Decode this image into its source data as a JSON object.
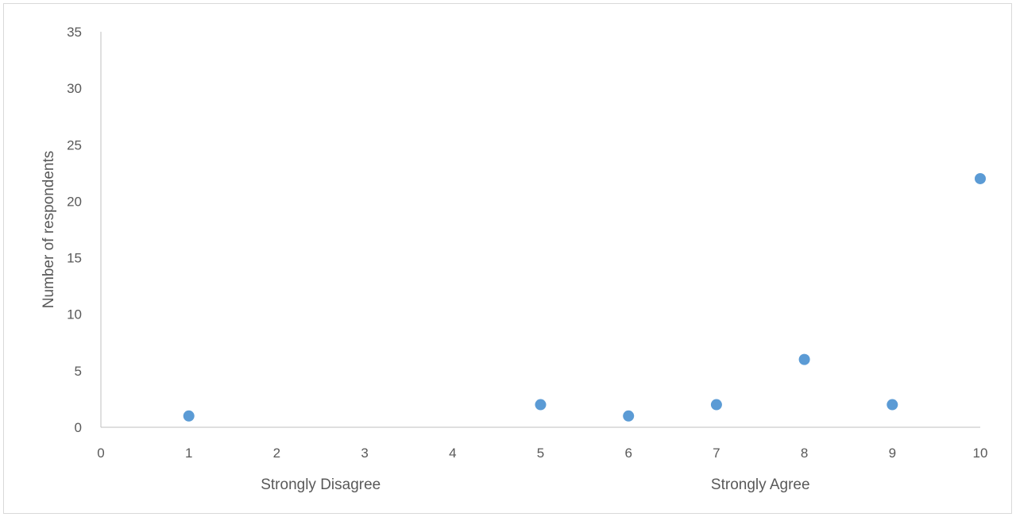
{
  "chart_data": {
    "type": "scatter",
    "title": "",
    "xlabel": "",
    "ylabel": "Number of respondents",
    "x_annotations": [
      {
        "label": "Strongly Disagree",
        "x": 2.5
      },
      {
        "label": "Strongly Agree",
        "x": 7.5
      }
    ],
    "xlim": [
      0,
      10
    ],
    "ylim": [
      0,
      35
    ],
    "x_ticks": [
      0,
      1,
      2,
      3,
      4,
      5,
      6,
      7,
      8,
      9,
      10
    ],
    "y_ticks": [
      0,
      5,
      10,
      15,
      20,
      25,
      30,
      35
    ],
    "grid": false,
    "legend": "none",
    "marker_color": "#5b9bd5",
    "series": [
      {
        "points": [
          {
            "x": 1,
            "y": 1
          },
          {
            "x": 5,
            "y": 2
          },
          {
            "x": 6,
            "y": 1
          },
          {
            "x": 7,
            "y": 2
          },
          {
            "x": 8,
            "y": 6
          },
          {
            "x": 9,
            "y": 2
          },
          {
            "x": 10,
            "y": 22
          }
        ]
      }
    ]
  }
}
